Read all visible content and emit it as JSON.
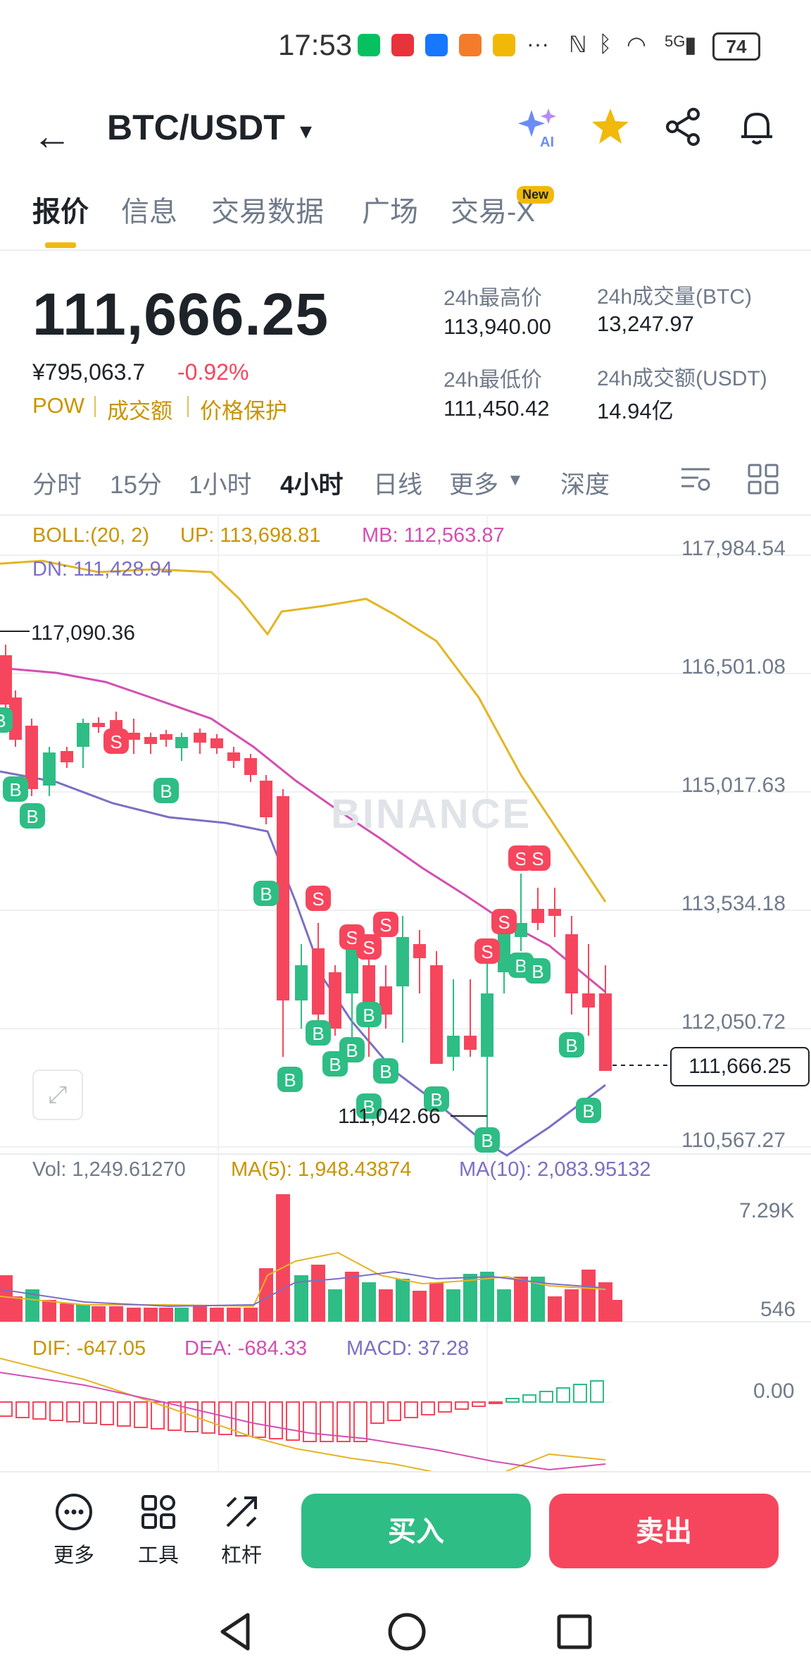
{
  "status": {
    "time": "17:53",
    "battery": "74",
    "dots": "···",
    "net": "5G"
  },
  "header": {
    "pair": "BTC/USDT",
    "back_icon": "←",
    "caret": "▾"
  },
  "tabs": [
    {
      "label": "报价"
    },
    {
      "label": "信息"
    },
    {
      "label": "交易数据"
    },
    {
      "label": "广场"
    },
    {
      "label": "交易-X"
    }
  ],
  "tab_badge": "New",
  "ticker": {
    "price": "111,666.25",
    "cny": "¥795,063.7",
    "change": "-0.92%",
    "tags": [
      "POW",
      "成交额",
      "价格保护"
    ],
    "high_label": "24h最高价",
    "high": "113,940.00",
    "low_label": "24h最低价",
    "low": "111,450.42",
    "vol_btc_label": "24h成交量(BTC)",
    "vol_btc": "13,247.97",
    "vol_usdt_label": "24h成交额(USDT)",
    "vol_usdt": "14.94亿"
  },
  "intervals": [
    {
      "label": "分时"
    },
    {
      "label": "15分"
    },
    {
      "label": "1小时"
    },
    {
      "label": "4小时"
    },
    {
      "label": "日线"
    },
    {
      "label": "更多"
    },
    {
      "label": "深度"
    }
  ],
  "boll": {
    "label": "BOLL:(20, 2)",
    "up": "UP: 113,698.81",
    "mb": "MB: 112,563.87",
    "dn": "DN: 111,428.94"
  },
  "price_axis": [
    "117,984.54",
    "116,501.08",
    "115,017.63",
    "113,534.18",
    "112,050.72",
    "110,567.27"
  ],
  "high_marker": "117,090.36",
  "low_marker": "111,042.66",
  "current_price": "111,666.25",
  "watermark": "BINANCE",
  "volume": {
    "vol": "Vol: 1,249.61270",
    "ma5": "MA(5): 1,948.43874",
    "ma10": "MA(10): 2,083.95132",
    "axis_top": "7.29K",
    "axis_bottom": "546"
  },
  "macd": {
    "dif": "DIF: -647.05",
    "dea": "DEA: -684.33",
    "macd": "MACD: 37.28",
    "axis": "0.00"
  },
  "bottom": {
    "more": "更多",
    "tools": "工具",
    "leverage": "杠杆",
    "buy": "买入",
    "sell": "卖出"
  },
  "colors": {
    "up": "#2ebd85",
    "down": "#f6465d",
    "accent": "#f0b90b"
  }
}
